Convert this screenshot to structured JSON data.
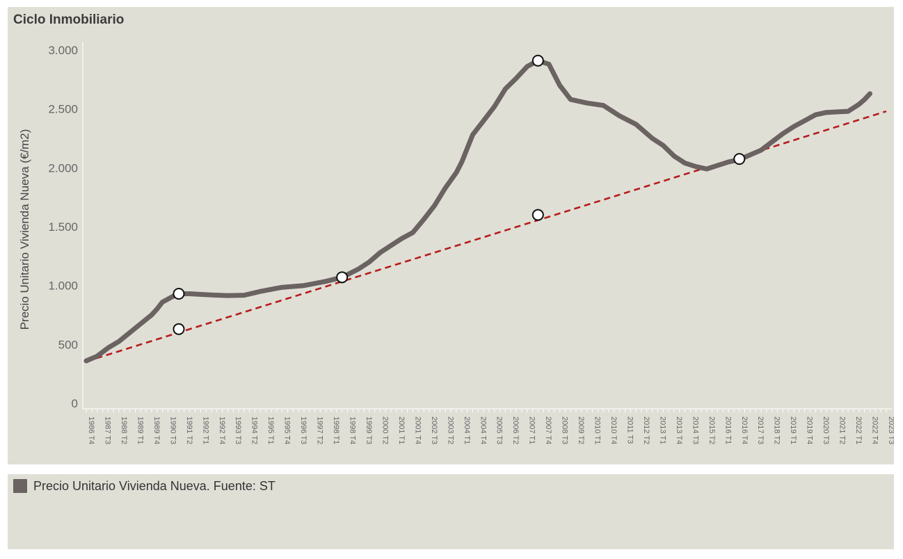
{
  "chart_data": {
    "type": "line",
    "title": "Ciclo Inmobiliario",
    "xlabel": "",
    "ylabel": "Precio Unitario Vivienda Nueva (€/m2)",
    "ylim": [
      0,
      3000
    ],
    "y_ticks": [
      {
        "value": 0,
        "label": "0"
      },
      {
        "value": 500,
        "label": "500"
      },
      {
        "value": 1000,
        "label": "1.000"
      },
      {
        "value": 1500,
        "label": "1.500"
      },
      {
        "value": 2000,
        "label": "2.000"
      },
      {
        "value": 2500,
        "label": "2.500"
      },
      {
        "value": 3000,
        "label": "3.000"
      }
    ],
    "x_start": {
      "year": 1986,
      "quarter": 4
    },
    "x_end": {
      "year": 2023,
      "quarter": 3
    },
    "x_label_step_quarters": 3,
    "series": [
      {
        "name": "Precio Unitario Vivienda Nueva. Fuente: ST",
        "color": "#6b6262",
        "points": [
          {
            "year": 1986,
            "quarter": 4,
            "value": 360
          },
          {
            "year": 1987,
            "quarter": 2,
            "value": 400
          },
          {
            "year": 1987,
            "quarter": 4,
            "value": 470
          },
          {
            "year": 1988,
            "quarter": 2,
            "value": 525
          },
          {
            "year": 1988,
            "quarter": 4,
            "value": 600
          },
          {
            "year": 1989,
            "quarter": 2,
            "value": 675
          },
          {
            "year": 1989,
            "quarter": 4,
            "value": 750
          },
          {
            "year": 1990,
            "quarter": 1,
            "value": 800
          },
          {
            "year": 1990,
            "quarter": 2,
            "value": 860
          },
          {
            "year": 1990,
            "quarter": 4,
            "value": 910
          },
          {
            "year": 1991,
            "quarter": 1,
            "value": 930
          },
          {
            "year": 1991,
            "quarter": 3,
            "value": 930
          },
          {
            "year": 1992,
            "quarter": 3,
            "value": 920
          },
          {
            "year": 1993,
            "quarter": 2,
            "value": 915
          },
          {
            "year": 1994,
            "quarter": 1,
            "value": 918
          },
          {
            "year": 1994,
            "quarter": 4,
            "value": 950
          },
          {
            "year": 1995,
            "quarter": 4,
            "value": 985
          },
          {
            "year": 1996,
            "quarter": 4,
            "value": 1000
          },
          {
            "year": 1997,
            "quarter": 4,
            "value": 1035
          },
          {
            "year": 1998,
            "quarter": 3,
            "value": 1070
          },
          {
            "year": 1999,
            "quarter": 2,
            "value": 1140
          },
          {
            "year": 1999,
            "quarter": 4,
            "value": 1200
          },
          {
            "year": 2000,
            "quarter": 2,
            "value": 1280
          },
          {
            "year": 2000,
            "quarter": 4,
            "value": 1340
          },
          {
            "year": 2001,
            "quarter": 2,
            "value": 1400
          },
          {
            "year": 2001,
            "quarter": 4,
            "value": 1450
          },
          {
            "year": 2002,
            "quarter": 2,
            "value": 1560
          },
          {
            "year": 2002,
            "quarter": 4,
            "value": 1680
          },
          {
            "year": 2003,
            "quarter": 2,
            "value": 1830
          },
          {
            "year": 2003,
            "quarter": 4,
            "value": 1960
          },
          {
            "year": 2004,
            "quarter": 1,
            "value": 2050
          },
          {
            "year": 2004,
            "quarter": 3,
            "value": 2280
          },
          {
            "year": 2005,
            "quarter": 1,
            "value": 2400
          },
          {
            "year": 2005,
            "quarter": 3,
            "value": 2520
          },
          {
            "year": 2006,
            "quarter": 1,
            "value": 2670
          },
          {
            "year": 2006,
            "quarter": 3,
            "value": 2760
          },
          {
            "year": 2007,
            "quarter": 1,
            "value": 2860
          },
          {
            "year": 2007,
            "quarter": 3,
            "value": 2910
          },
          {
            "year": 2008,
            "quarter": 1,
            "value": 2880
          },
          {
            "year": 2008,
            "quarter": 3,
            "value": 2700
          },
          {
            "year": 2009,
            "quarter": 1,
            "value": 2580
          },
          {
            "year": 2009,
            "quarter": 4,
            "value": 2550
          },
          {
            "year": 2010,
            "quarter": 3,
            "value": 2530
          },
          {
            "year": 2011,
            "quarter": 2,
            "value": 2440
          },
          {
            "year": 2012,
            "quarter": 1,
            "value": 2370
          },
          {
            "year": 2012,
            "quarter": 4,
            "value": 2250
          },
          {
            "year": 2013,
            "quarter": 2,
            "value": 2190
          },
          {
            "year": 2013,
            "quarter": 4,
            "value": 2100
          },
          {
            "year": 2014,
            "quarter": 2,
            "value": 2040
          },
          {
            "year": 2014,
            "quarter": 4,
            "value": 2010
          },
          {
            "year": 2015,
            "quarter": 2,
            "value": 1990
          },
          {
            "year": 2015,
            "quarter": 4,
            "value": 2020
          },
          {
            "year": 2016,
            "quarter": 2,
            "value": 2050
          },
          {
            "year": 2016,
            "quarter": 4,
            "value": 2070
          },
          {
            "year": 2017,
            "quarter": 2,
            "value": 2110
          },
          {
            "year": 2017,
            "quarter": 4,
            "value": 2150
          },
          {
            "year": 2018,
            "quarter": 2,
            "value": 2220
          },
          {
            "year": 2018,
            "quarter": 4,
            "value": 2290
          },
          {
            "year": 2019,
            "quarter": 2,
            "value": 2350
          },
          {
            "year": 2019,
            "quarter": 4,
            "value": 2400
          },
          {
            "year": 2020,
            "quarter": 2,
            "value": 2450
          },
          {
            "year": 2020,
            "quarter": 4,
            "value": 2470
          },
          {
            "year": 2021,
            "quarter": 2,
            "value": 2475
          },
          {
            "year": 2021,
            "quarter": 4,
            "value": 2480
          },
          {
            "year": 2022,
            "quarter": 2,
            "value": 2540
          },
          {
            "year": 2022,
            "quarter": 3,
            "value": 2580
          },
          {
            "year": 2022,
            "quarter": 4,
            "value": 2630
          }
        ]
      }
    ],
    "trend_line": {
      "color": "#b51c1c",
      "style": "dashed",
      "start": {
        "year": 1986,
        "quarter": 4,
        "value": 355
      },
      "end": {
        "year": 2023,
        "quarter": 3,
        "value": 2480
      }
    },
    "markers": [
      {
        "year": 1991,
        "quarter": 1,
        "value": 930
      },
      {
        "year": 1991,
        "quarter": 1,
        "value": 630
      },
      {
        "year": 1998,
        "quarter": 3,
        "value": 1070
      },
      {
        "year": 2007,
        "quarter": 3,
        "value": 2910
      },
      {
        "year": 2007,
        "quarter": 3,
        "value": 1600
      },
      {
        "year": 2016,
        "quarter": 4,
        "value": 2075
      }
    ]
  },
  "legend": {
    "label": "Precio Unitario Vivienda Nueva. Fuente: ST",
    "swatch_color": "#6b6262"
  }
}
